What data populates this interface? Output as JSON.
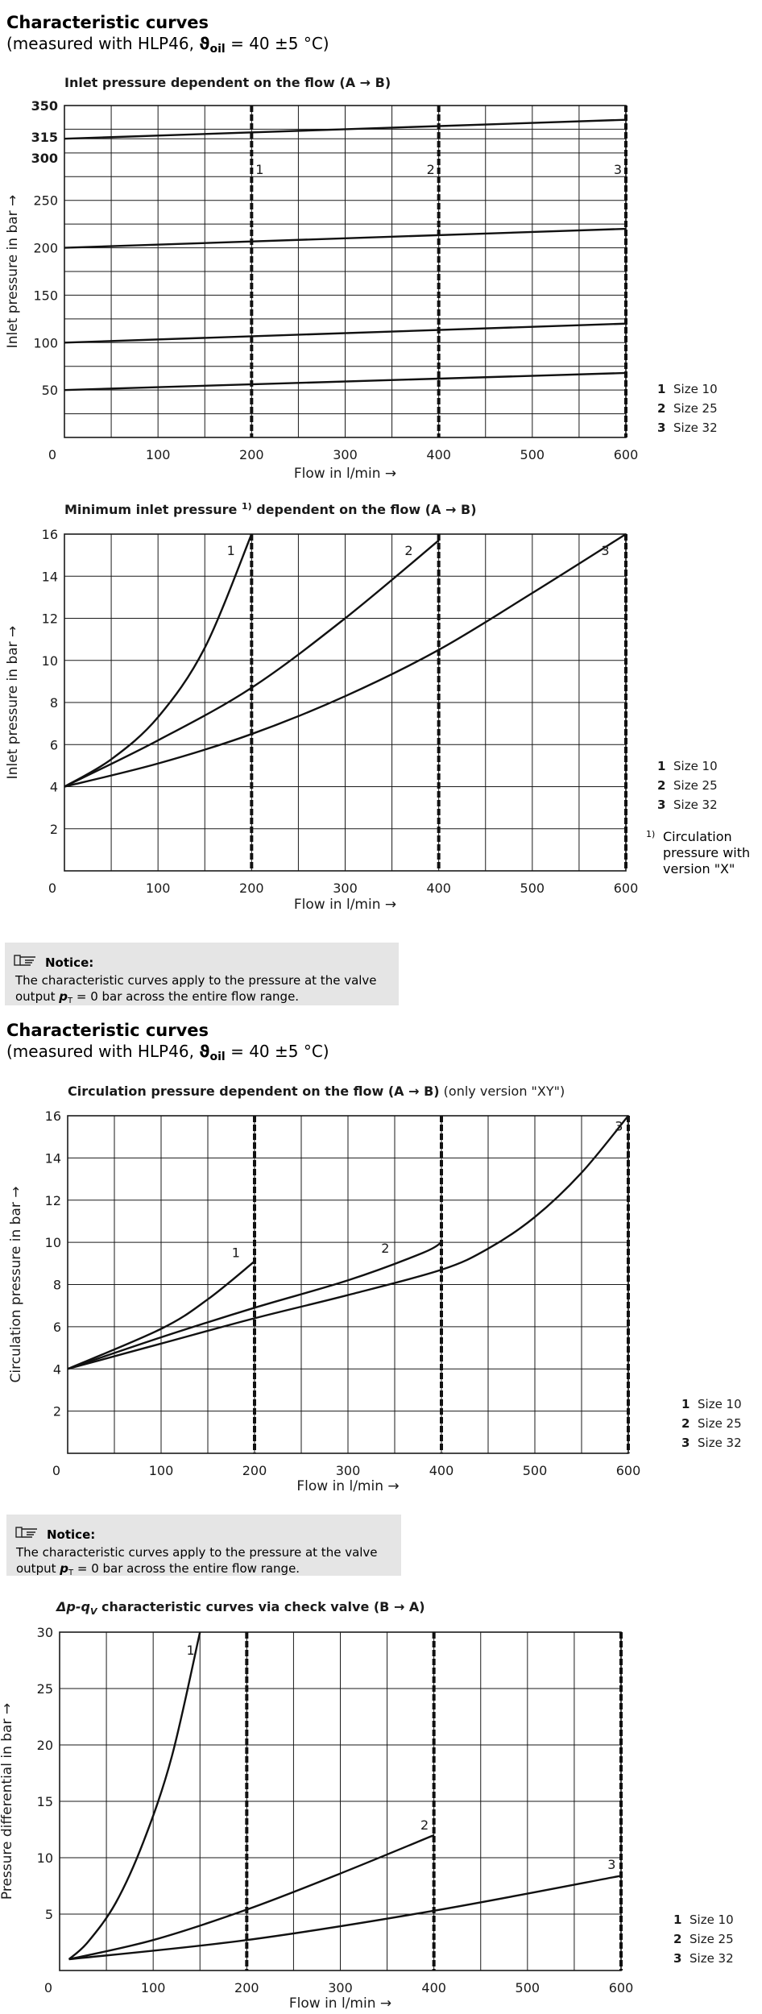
{
  "section1": {
    "heading": "Characteristic curves",
    "sub_a": "(measured with HLP46, ",
    "sub_theta": "ϑ",
    "sub_oil": "oil",
    "sub_b": " = 40 ±5 °C)"
  },
  "section2": {
    "heading": "Characteristic curves",
    "sub_a": "(measured with HLP46, ",
    "sub_theta": "ϑ",
    "sub_oil": "oil",
    "sub_b": " = 40 ±5 °C)"
  },
  "notice1": {
    "title": "Notice:",
    "line1": "The characteristic curves apply to the pressure at the valve",
    "line2_a": "output ",
    "line2_p": "p",
    "line2_sub": "T",
    "line2_b": " = 0 bar across the entire flow range."
  },
  "notice2": {
    "title": "Notice:",
    "line1": "The characteristic curves apply to the pressure at the valve",
    "line2_a": "output ",
    "line2_p": "p",
    "line2_sub": "T",
    "line2_b": " = 0 bar across the entire flow range."
  },
  "footnote": {
    "marker": "1)",
    "line1": "Circulation",
    "line2": "pressure with",
    "line3": "version \"X\""
  },
  "chart_data": [
    {
      "type": "line",
      "title": "Inlet pressure dependent on the flow (A → B)",
      "title_suffix": "",
      "title_sup": "",
      "title_rest": "",
      "xlabel": "Flow in l/min →",
      "ylabel": "Inlet pressure in bar →",
      "xlim": [
        0,
        600
      ],
      "ylim": [
        0,
        350
      ],
      "xticks": [
        0,
        100,
        200,
        300,
        400,
        500,
        600
      ],
      "yticks": [
        50,
        100,
        150,
        200,
        250,
        300,
        315,
        350
      ],
      "ytick_labels": [
        "50",
        "100",
        "150",
        "200",
        "250",
        "300",
        "315",
        "350"
      ],
      "xtick_labels": [
        "0",
        "100",
        "200",
        "300",
        "400",
        "500",
        "600"
      ],
      "size_markers": [
        {
          "x": 200,
          "label": "1"
        },
        {
          "x": 400,
          "label": "2"
        },
        {
          "x": 600,
          "label": "3"
        }
      ],
      "legend": [
        {
          "num": "1",
          "text": "Size 10"
        },
        {
          "num": "2",
          "text": "Size 25"
        },
        {
          "num": "3",
          "text": "Size 32"
        }
      ],
      "series": [
        {
          "points": [
            [
              0,
              315
            ],
            [
              600,
              335
            ]
          ]
        },
        {
          "points": [
            [
              0,
              200
            ],
            [
              600,
              220
            ]
          ]
        },
        {
          "points": [
            [
              0,
              100
            ],
            [
              600,
              120
            ]
          ]
        },
        {
          "points": [
            [
              0,
              50
            ],
            [
              600,
              68
            ]
          ]
        }
      ]
    },
    {
      "type": "line",
      "title": "Minimum inlet pressure ",
      "title_suffix": "",
      "title_sup": "1)",
      "title_rest": " dependent on the flow (A → B)",
      "xlabel": "Flow in l/min →",
      "ylabel": "Inlet pressure in bar →",
      "xlim": [
        0,
        600
      ],
      "ylim": [
        0,
        16
      ],
      "xticks": [
        0,
        100,
        200,
        300,
        400,
        500,
        600
      ],
      "yticks": [
        2,
        4,
        6,
        8,
        10,
        12,
        14,
        16
      ],
      "ytick_labels": [
        "2",
        "4",
        "6",
        "8",
        "10",
        "12",
        "14",
        "16"
      ],
      "xtick_labels": [
        "0",
        "100",
        "200",
        "300",
        "400",
        "500",
        "600"
      ],
      "legend": [
        {
          "num": "1",
          "text": "Size 10"
        },
        {
          "num": "2",
          "text": "Size 25"
        },
        {
          "num": "3",
          "text": "Size 32"
        }
      ],
      "series": [
        {
          "name": "1",
          "label_at": [
            178,
            15
          ],
          "points": [
            [
              0,
              4
            ],
            [
              50,
              5.3
            ],
            [
              100,
              7.3
            ],
            [
              150,
              10.6
            ],
            [
              200,
              16
            ]
          ]
        },
        {
          "name": "2",
          "label_at": [
            368,
            15
          ],
          "points": [
            [
              0,
              4
            ],
            [
              100,
              6.2
            ],
            [
              200,
              8.7
            ],
            [
              300,
              12
            ],
            [
              400,
              15.7
            ]
          ]
        },
        {
          "name": "3",
          "label_at": [
            578,
            15
          ],
          "points": [
            [
              0,
              4
            ],
            [
              100,
              5.1
            ],
            [
              200,
              6.5
            ],
            [
              300,
              8.3
            ],
            [
              400,
              10.5
            ],
            [
              500,
              13.2
            ],
            [
              600,
              16
            ]
          ]
        }
      ]
    },
    {
      "type": "line",
      "title": "Circulation pressure dependent on the flow (A → B)",
      "title_suffix": " (only version \"XY\")",
      "title_sup": "",
      "title_rest": "",
      "xlabel": "Flow in l/min →",
      "ylabel": "Circulation pressure in bar →",
      "xlim": [
        0,
        600
      ],
      "ylim": [
        0,
        16
      ],
      "xticks": [
        0,
        100,
        200,
        300,
        400,
        500,
        600
      ],
      "yticks": [
        2,
        4,
        6,
        8,
        10,
        12,
        14,
        16
      ],
      "ytick_labels": [
        "2",
        "4",
        "6",
        "8",
        "10",
        "12",
        "14",
        "16"
      ],
      "xtick_labels": [
        "0",
        "100",
        "200",
        "300",
        "400",
        "500",
        "600"
      ],
      "legend": [
        {
          "num": "1",
          "text": "Size 10"
        },
        {
          "num": "2",
          "text": "Size 25"
        },
        {
          "num": "3",
          "text": "Size 32"
        }
      ],
      "series": [
        {
          "name": "1",
          "label_at": [
            180,
            9.3
          ],
          "points": [
            [
              0,
              4
            ],
            [
              100,
              5.9
            ],
            [
              150,
              7.3
            ],
            [
              200,
              9.1
            ]
          ]
        },
        {
          "name": "2",
          "label_at": [
            340,
            9.5
          ],
          "points": [
            [
              0,
              4
            ],
            [
              100,
              5.5
            ],
            [
              200,
              6.9
            ],
            [
              300,
              8.2
            ],
            [
              380,
              9.5
            ],
            [
              400,
              10
            ]
          ]
        },
        {
          "name": "3",
          "label_at": [
            590,
            15.3
          ],
          "points": [
            [
              0,
              4
            ],
            [
              100,
              5.2
            ],
            [
              200,
              6.4
            ],
            [
              300,
              7.5
            ],
            [
              400,
              8.7
            ],
            [
              450,
              9.7
            ],
            [
              500,
              11.2
            ],
            [
              550,
              13.3
            ],
            [
              600,
              16
            ]
          ]
        }
      ]
    },
    {
      "type": "line",
      "title": "Δp-q",
      "title_suffix": " characteristic curves via check valve (B → A)",
      "title_sup": "",
      "title_rest": "",
      "title_sub": "V",
      "xlabel": "Flow in l/min →",
      "ylabel": "Pressure differential in bar →",
      "xlim": [
        0,
        600
      ],
      "ylim": [
        0,
        30
      ],
      "xticks": [
        0,
        100,
        200,
        300,
        400,
        500,
        600
      ],
      "yticks": [
        5,
        10,
        15,
        20,
        25,
        30
      ],
      "ytick_labels": [
        "5",
        "10",
        "15",
        "20",
        "25",
        "30"
      ],
      "xtick_labels": [
        "0",
        "100",
        "200",
        "300",
        "400",
        "500",
        "600"
      ],
      "legend": [
        {
          "num": "1",
          "text": "Size 10"
        },
        {
          "num": "2",
          "text": "Size 25"
        },
        {
          "num": "3",
          "text": "Size 32"
        }
      ],
      "series": [
        {
          "name": "1",
          "label_at": [
            140,
            28
          ],
          "points": [
            [
              10,
              1
            ],
            [
              30,
              2.5
            ],
            [
              60,
              6
            ],
            [
              90,
              11.5
            ],
            [
              120,
              19
            ],
            [
              150,
              30
            ]
          ]
        },
        {
          "name": "2",
          "label_at": [
            390,
            12.5
          ],
          "points": [
            [
              10,
              1
            ],
            [
              100,
              2.7
            ],
            [
              200,
              5.4
            ],
            [
              300,
              8.6
            ],
            [
              400,
              12
            ]
          ]
        },
        {
          "name": "3",
          "label_at": [
            590,
            9
          ],
          "points": [
            [
              10,
              1
            ],
            [
              200,
              2.7
            ],
            [
              400,
              5.3
            ],
            [
              600,
              8.4
            ]
          ]
        }
      ]
    }
  ]
}
